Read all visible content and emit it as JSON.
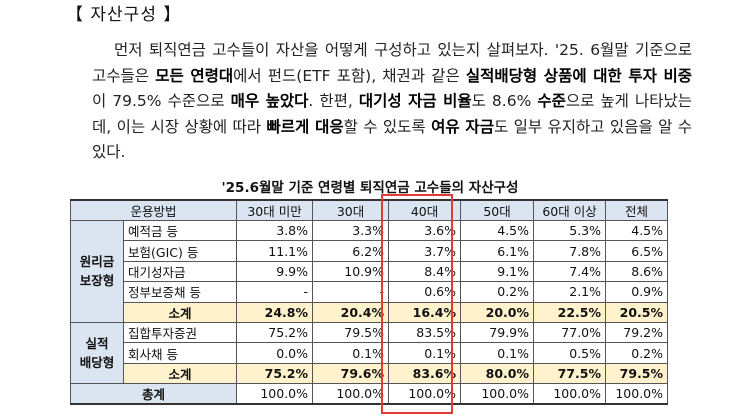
{
  "section": {
    "title": "【 자산구성 】"
  },
  "paragraph": {
    "p1": "먼저 퇴직연금 고수들이 자산을 어떻게 구성하고 있는지 살펴보자. '25. 6월말 기준으로 고수들은 ",
    "b1": "모든 연령대",
    "p2": "에서 펀드(ETF 포함), 채권과 같은 ",
    "b2": "실적배당형 상품에 대한 투자 비중",
    "p3": "이 79.5% 수준으로 ",
    "b3": "매우 높았다",
    "p4": ". 한편, ",
    "b4": "대기성 자금 비율",
    "p5": "도 8.6% ",
    "b5": "수준",
    "p6": "으로 높게 나타났는데, 이는 시장 상황에 따라 ",
    "b6": "빠르게 대응",
    "p7": "할 수 있도록 ",
    "b7": "여유 자금",
    "p8": "도 일부 유지하고 있음을 알 수 있다."
  },
  "table": {
    "title": "'25.6월말 기준 연령별 퇴직연금 고수들의 자산구성",
    "headers": [
      "운용방법",
      "30대 미만",
      "30대",
      "40대",
      "50대",
      "60대 이상",
      "전체"
    ],
    "groups": {
      "principal": {
        "label_line1": "원리금",
        "label_line2": "보장형",
        "rows": [
          {
            "label": "예적금 등",
            "values": [
              "3.8%",
              "3.3%",
              "3.6%",
              "4.5%",
              "5.3%",
              "4.5%"
            ]
          },
          {
            "label": "보험(GIC) 등",
            "values": [
              "11.1%",
              "6.2%",
              "3.7%",
              "6.1%",
              "7.8%",
              "6.5%"
            ]
          },
          {
            "label": "대기성자금",
            "values": [
              "9.9%",
              "10.9%",
              "8.4%",
              "9.1%",
              "7.4%",
              "8.6%"
            ]
          },
          {
            "label": "정부보증채 등",
            "values": [
              "-",
              "-",
              "0.6%",
              "0.2%",
              "2.1%",
              "0.9%"
            ]
          }
        ],
        "subtotal": {
          "label": "소계",
          "values": [
            "24.8%",
            "20.4%",
            "16.4%",
            "20.0%",
            "22.5%",
            "20.5%"
          ]
        }
      },
      "performance": {
        "label_line1": "실적",
        "label_line2": "배당형",
        "rows": [
          {
            "label": "집합투자증권",
            "values": [
              "75.2%",
              "79.5%",
              "83.5%",
              "79.9%",
              "77.0%",
              "79.2%"
            ]
          },
          {
            "label": "회사채 등",
            "values": [
              "0.0%",
              "0.1%",
              "0.1%",
              "0.1%",
              "0.5%",
              "0.2%"
            ]
          }
        ],
        "subtotal": {
          "label": "소계",
          "values": [
            "75.2%",
            "79.6%",
            "83.6%",
            "80.0%",
            "77.5%",
            "79.5%"
          ]
        }
      }
    },
    "total": {
      "label": "총계",
      "values": [
        "100.0%",
        "100.0%",
        "100.0%",
        "100.0%",
        "100.0%",
        "100.0%"
      ]
    }
  },
  "colors": {
    "header_bg": "#dbe5f1",
    "subtotal_bg": "#fff2cc",
    "highlight_border": "#e53935"
  }
}
